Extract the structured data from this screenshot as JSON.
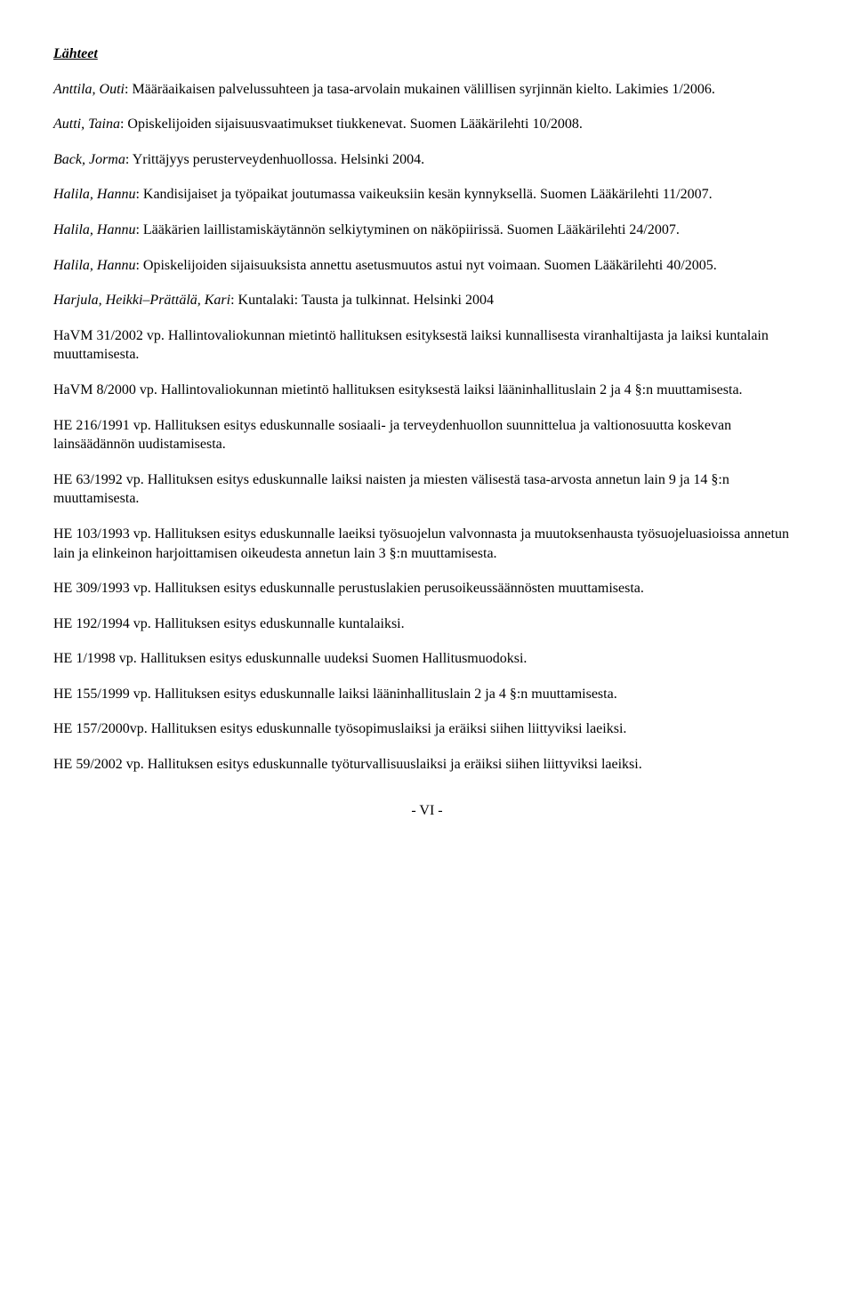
{
  "heading": "Lähteet",
  "entries": [
    {
      "author": "Anttila, Outi",
      "rest": ": Määräaikaisen palvelussuhteen ja tasa-arvolain mukainen välillisen syrjinnän kielto. Lakimies 1/2006."
    },
    {
      "author": "Autti, Taina",
      "rest": ": Opiskelijoiden sijaisuusvaatimukset tiukkenevat. Suomen Lääkärilehti 10/2008."
    },
    {
      "author": "Back, Jorma",
      "rest": ": Yrittäjyys perusterveydenhuollossa. Helsinki 2004."
    },
    {
      "author": "Halila, Hannu",
      "rest": ": Kandisijaiset ja työpaikat joutumassa vaikeuksiin kesän kynnyksellä. Suomen Lääkärilehti 11/2007."
    },
    {
      "author": "Halila, Hannu",
      "rest": ": Lääkärien laillistamiskäytännön selkiytyminen on näköpiirissä. Suomen Lääkärilehti 24/2007."
    },
    {
      "author": "Halila, Hannu",
      "rest": ": Opiskelijoiden sijaisuuksista annettu asetusmuutos astui nyt voimaan. Suomen Lääkärilehti 40/2005."
    },
    {
      "author": "Harjula, Heikki–Prättälä, Kari",
      "rest": ": Kuntalaki: Tausta ja tulkinnat. Helsinki 2004"
    }
  ],
  "plain": [
    "HaVM 31/2002 vp. Hallintovaliokunnan mietintö hallituksen esityksestä laiksi kunnallisesta viranhaltijasta ja laiksi kuntalain muuttamisesta.",
    "HaVM 8/2000 vp. Hallintovaliokunnan mietintö hallituksen esityksestä laiksi lääninhallituslain 2 ja 4 §:n muuttamisesta.",
    "HE 216/1991 vp. Hallituksen esitys eduskunnalle sosiaali- ja terveydenhuollon suunnittelua ja valtionosuutta koskevan lainsäädännön uudistamisesta.",
    "HE 63/1992 vp. Hallituksen esitys eduskunnalle laiksi naisten ja miesten välisestä tasa-arvosta annetun lain 9 ja 14 §:n muuttamisesta.",
    "HE 103/1993 vp. Hallituksen esitys eduskunnalle laeiksi työsuojelun valvonnasta ja muutoksenhausta työsuojeluasioissa annetun lain ja elinkeinon harjoittamisen oikeudesta annetun lain 3 §:n muuttamisesta.",
    "HE 309/1993 vp. Hallituksen esitys eduskunnalle perustuslakien perusoikeussäännösten muuttamisesta.",
    "HE 192/1994 vp. Hallituksen esitys eduskunnalle kuntalaiksi.",
    "HE 1/1998 vp. Hallituksen esitys eduskunnalle uudeksi Suomen Hallitusmuodoksi.",
    "HE 155/1999 vp. Hallituksen esitys eduskunnalle laiksi lääninhallituslain 2 ja 4 §:n muuttamisesta.",
    "HE 157/2000vp. Hallituksen esitys eduskunnalle työsopimuslaiksi ja eräiksi siihen liittyviksi laeiksi.",
    "HE 59/2002 vp. Hallituksen esitys eduskunnalle työturvallisuuslaiksi ja eräiksi siihen liittyviksi laeiksi."
  ],
  "pageNumber": "- VI -"
}
